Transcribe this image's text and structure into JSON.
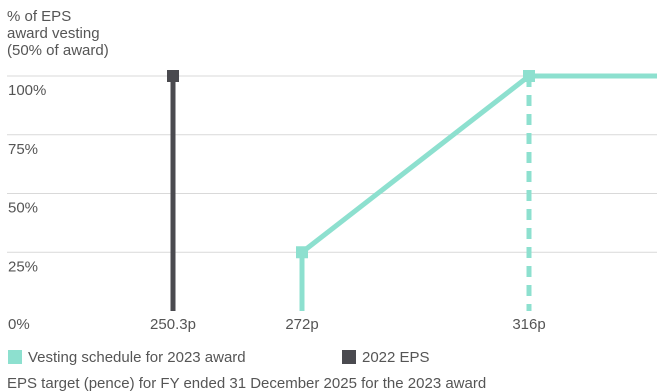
{
  "chart_data": {
    "type": "line",
    "ylabel_lines": [
      "% of EPS",
      "award vesting",
      "(50% of award)"
    ],
    "xlabel": "EPS target (pence) for FY ended 31 December 2025 for the 2023 award",
    "y_ticks": [
      {
        "value": 0,
        "label": "0%"
      },
      {
        "value": 25,
        "label": "25%"
      },
      {
        "value": 50,
        "label": "50%"
      },
      {
        "value": 75,
        "label": "75%"
      },
      {
        "value": 100,
        "label": "100%"
      }
    ],
    "x_ticks": [
      {
        "value": 250.3,
        "label": "250.3p"
      },
      {
        "value": 272,
        "label": "272p"
      },
      {
        "value": 316,
        "label": "316p"
      }
    ],
    "ylim": [
      0,
      100
    ],
    "grid": true,
    "series": [
      {
        "name": "Vesting schedule for 2023 award",
        "color": "#8de0cf",
        "points": [
          [
            272,
            25
          ],
          [
            316,
            100
          ],
          [
            332,
            100
          ]
        ],
        "threshold_drop": [
          272,
          25
        ],
        "max_drop_dashed": [
          316,
          100
        ]
      },
      {
        "name": "2022 EPS",
        "color": "#4a4a4f",
        "points": [
          [
            250.3,
            0
          ],
          [
            250.3,
            100
          ]
        ]
      }
    ],
    "legend_placement": "bottom-left"
  }
}
